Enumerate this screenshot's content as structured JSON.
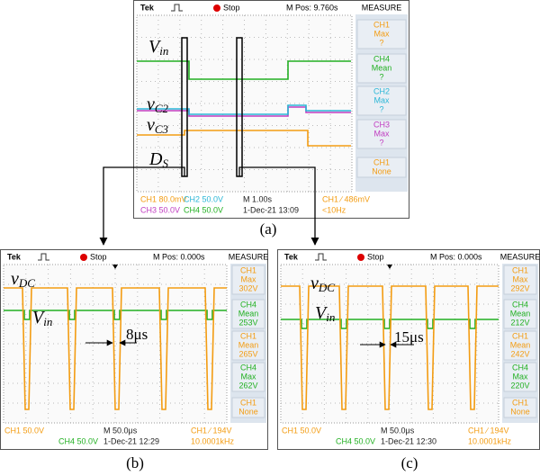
{
  "panels": [
    {
      "caption": "(a)",
      "brand": "Tek",
      "status": "Stop",
      "position": "M Pos: 9.760s",
      "measure_title": "MEASURE",
      "measures": [
        [
          "CH1",
          "Max",
          "?"
        ],
        [
          "CH4",
          "Mean",
          "?"
        ],
        [
          "CH2",
          "Max",
          "?"
        ],
        [
          "CH3",
          "Max",
          "?"
        ],
        [
          "CH1",
          "None"
        ]
      ],
      "footer": [
        [
          "CH1 80.0mV",
          "CH2 50.0V",
          "M 1.00s",
          "CH1 ∕ 486mV"
        ],
        [
          "CH3 50.0V",
          "CH4 50.0V",
          "1-Dec-21 13:09",
          "<10Hz"
        ]
      ],
      "signals": [
        {
          "symbol": "V",
          "sub": "in"
        },
        {
          "symbol": "v",
          "sub": "C2"
        },
        {
          "symbol": "v",
          "sub": "C3"
        },
        {
          "symbol": "D",
          "sub": "S"
        }
      ]
    },
    {
      "caption": "(b)",
      "brand": "Tek",
      "status": "Stop",
      "position": "M Pos: 0.000s",
      "measure_title": "MEASURE",
      "measures": [
        [
          "CH1",
          "Max",
          "302V"
        ],
        [
          "CH4",
          "Mean",
          "253V"
        ],
        [
          "CH1",
          "Mean",
          "265V"
        ],
        [
          "CH4",
          "Max",
          "262V"
        ],
        [
          "CH1",
          "None"
        ]
      ],
      "footer": [
        [
          "CH1 50.0V",
          "M 50.0μs",
          "CH1 ∕ 194V"
        ],
        [
          "CH4 50.0V",
          "1-Dec-21 12:29",
          "10.0001kHz"
        ]
      ],
      "signals": [
        {
          "symbol": "v",
          "sub": "DC"
        },
        {
          "symbol": "V",
          "sub": "in"
        }
      ],
      "annotation": "8μs"
    },
    {
      "caption": "(c)",
      "brand": "Tek",
      "status": "Stop",
      "position": "M Pos: 0.000s",
      "measure_title": "MEASURE",
      "measures": [
        [
          "CH1",
          "Max",
          "292V"
        ],
        [
          "CH4",
          "Mean",
          "212V"
        ],
        [
          "CH1",
          "Mean",
          "242V"
        ],
        [
          "CH4",
          "Max",
          "220V"
        ],
        [
          "CH1",
          "None"
        ]
      ],
      "footer": [
        [
          "CH1 50.0V",
          "M 50.0μs",
          "CH1 ∕ 194V"
        ],
        [
          "CH4 50.0V",
          "1-Dec-21 12:30",
          "10.0001kHz"
        ]
      ],
      "signals": [
        {
          "symbol": "v",
          "sub": "DC"
        },
        {
          "symbol": "V",
          "sub": "in"
        }
      ],
      "annotation": "15μs"
    }
  ]
}
